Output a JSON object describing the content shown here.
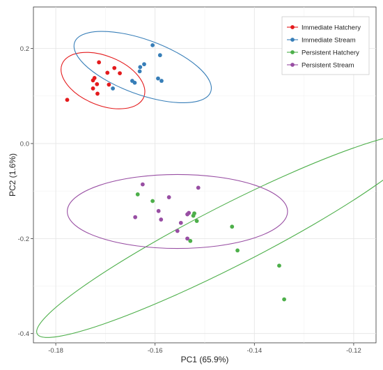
{
  "chart_data": {
    "type": "scatter",
    "title": "",
    "xlabel": "PC1 (65.9%)",
    "ylabel": "PC2 (1.6%)",
    "xlim": [
      -0.1845,
      -0.1155
    ],
    "ylim": [
      -0.4195,
      0.2875
    ],
    "xticks": [
      {
        "value": -0.18,
        "label": "-0.18"
      },
      {
        "value": -0.16,
        "label": "-0.16"
      },
      {
        "value": -0.14,
        "label": "-0.14"
      },
      {
        "value": -0.12,
        "label": "-0.12"
      }
    ],
    "yticks": [
      {
        "value": 0.2,
        "label": "0.2"
      },
      {
        "value": 0.0,
        "label": "0.0"
      },
      {
        "value": -0.2,
        "label": "-0.2"
      },
      {
        "value": -0.4,
        "label": "-0.4"
      }
    ],
    "grid": true,
    "legend_position": "top-right",
    "series": [
      {
        "name": "Immediate Hatchery",
        "color": "#e41a1c",
        "points": [
          [
            -0.1777,
            0.092
          ],
          [
            -0.1713,
            0.171
          ],
          [
            -0.1722,
            0.138
          ],
          [
            -0.1725,
            0.133
          ],
          [
            -0.1717,
            0.125
          ],
          [
            -0.1725,
            0.116
          ],
          [
            -0.1716,
            0.105
          ],
          [
            -0.1696,
            0.149
          ],
          [
            -0.1693,
            0.124
          ],
          [
            -0.1682,
            0.159
          ],
          [
            -0.1671,
            0.148
          ]
        ],
        "ellipse": {
          "center": [
            -0.1705,
            0.1325
          ],
          "rx_data": 0.00888,
          "ry_data": 0.05186,
          "angle_deg": -22
        }
      },
      {
        "name": "Immediate Stream",
        "color": "#377eb8",
        "points": [
          [
            -0.1685,
            0.116
          ],
          [
            -0.1646,
            0.132
          ],
          [
            -0.1641,
            0.128
          ],
          [
            -0.163,
            0.161
          ],
          [
            -0.1631,
            0.152
          ],
          [
            -0.1622,
            0.167
          ],
          [
            -0.1605,
            0.207
          ],
          [
            -0.159,
            0.186
          ],
          [
            -0.1594,
            0.137
          ],
          [
            -0.1587,
            0.132
          ]
        ],
        "ellipse": {
          "center": [
            -0.1625,
            0.161
          ],
          "rx_data": 0.01458,
          "ry_data": 0.05754,
          "angle_deg": -20
        }
      },
      {
        "name": "Persistent Hatchery",
        "color": "#4daf4a",
        "points": [
          [
            -0.1635,
            -0.107
          ],
          [
            -0.1605,
            -0.121
          ],
          [
            -0.1521,
            -0.147
          ],
          [
            -0.1523,
            -0.152
          ],
          [
            -0.1516,
            -0.163
          ],
          [
            -0.1529,
            -0.205
          ],
          [
            -0.1445,
            -0.175
          ],
          [
            -0.1434,
            -0.225
          ],
          [
            -0.135,
            -0.257
          ],
          [
            -0.134,
            -0.328
          ]
        ],
        "ellipse": {
          "center": [
            -0.1449,
            -0.1935
          ],
          "rx_data": 0.0436,
          "ry_data": 0.06376,
          "angle_deg": 27
        }
      },
      {
        "name": "Persistent Stream",
        "color": "#984ea3",
        "points": [
          [
            -0.1625,
            -0.086
          ],
          [
            -0.164,
            -0.155
          ],
          [
            -0.1593,
            -0.142
          ],
          [
            -0.1588,
            -0.16
          ],
          [
            -0.1572,
            -0.113
          ],
          [
            -0.1535,
            -0.149
          ],
          [
            -0.1532,
            -0.146
          ],
          [
            -0.1513,
            -0.093
          ],
          [
            -0.1548,
            -0.167
          ],
          [
            -0.1555,
            -0.184
          ],
          [
            -0.1535,
            -0.2
          ]
        ],
        "ellipse": {
          "center": [
            -0.1555,
            -0.143
          ],
          "rx_data": 0.02218,
          "ry_data": 0.07788,
          "angle_deg": 0
        }
      }
    ]
  }
}
